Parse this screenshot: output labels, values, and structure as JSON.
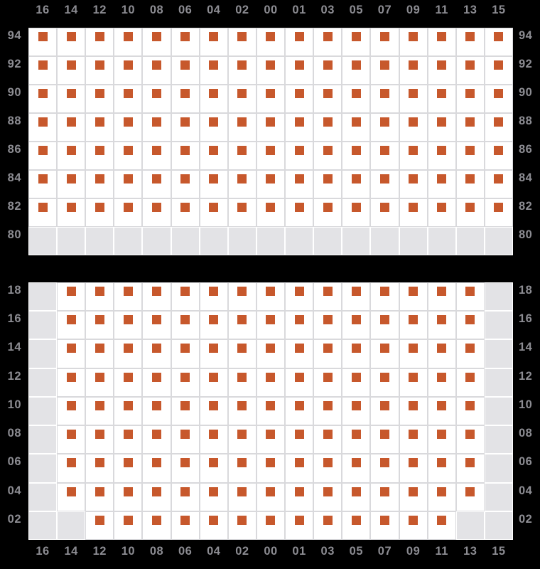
{
  "chart_data": {
    "type": "heatmap",
    "title": "",
    "columns": [
      "16",
      "14",
      "12",
      "10",
      "08",
      "06",
      "04",
      "02",
      "00",
      "01",
      "03",
      "05",
      "07",
      "09",
      "11",
      "13",
      "15"
    ],
    "cell_encoding": {
      "1": "marker",
      "0": "empty"
    },
    "panels": [
      {
        "id": "top",
        "rows": [
          {
            "label": "94",
            "cells": "11111111111111111"
          },
          {
            "label": "92",
            "cells": "11111111111111111"
          },
          {
            "label": "90",
            "cells": "11111111111111111"
          },
          {
            "label": "88",
            "cells": "11111111111111111"
          },
          {
            "label": "86",
            "cells": "11111111111111111"
          },
          {
            "label": "84",
            "cells": "11111111111111111"
          },
          {
            "label": "82",
            "cells": "11111111111111111"
          },
          {
            "label": "80",
            "cells": "00000000000000000"
          }
        ]
      },
      {
        "id": "bottom",
        "rows": [
          {
            "label": "18",
            "cells": "01111111111111110"
          },
          {
            "label": "16",
            "cells": "01111111111111110"
          },
          {
            "label": "14",
            "cells": "01111111111111110"
          },
          {
            "label": "12",
            "cells": "01111111111111110"
          },
          {
            "label": "10",
            "cells": "01111111111111110"
          },
          {
            "label": "08",
            "cells": "01111111111111110"
          },
          {
            "label": "06",
            "cells": "01111111111111110"
          },
          {
            "label": "04",
            "cells": "01111111111111110"
          },
          {
            "label": "02",
            "cells": "00111111111111100"
          }
        ]
      }
    ],
    "layout": {
      "column_labels_position": [
        "above top panel",
        "below bottom panel"
      ],
      "row_labels_position": [
        "left",
        "right"
      ],
      "grid": "on"
    },
    "colors": {
      "page_background": "#000000",
      "cell_background": "#ffffff",
      "grid_line": "#d9d9dc",
      "empty_cell": "#e3e3e6",
      "marker": "#c7582c",
      "label_text": "#8c8c92"
    }
  }
}
